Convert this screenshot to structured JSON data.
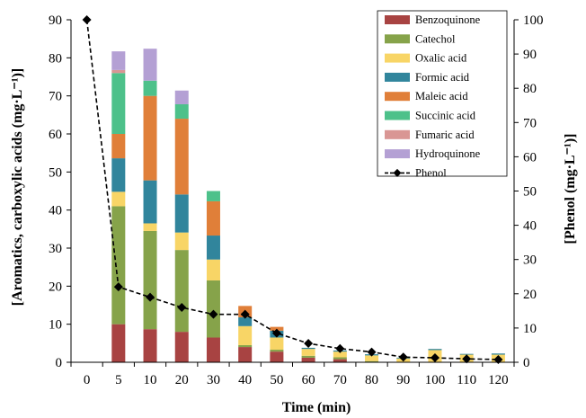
{
  "chart_data": {
    "type": "bar",
    "subtype": "stacked-bar-with-line",
    "categories": [
      "0",
      "5",
      "10",
      "20",
      "30",
      "40",
      "50",
      "60",
      "70",
      "80",
      "90",
      "100",
      "110",
      "120"
    ],
    "xlabel": "Time (min)",
    "ylabel_left": "[Aromatics, carboxylic acids  (mg·L⁻¹)]",
    "ylabel_right": "[Phenol (mg·L⁻¹)]",
    "ylim_left": [
      0,
      90
    ],
    "ylim_right": [
      0,
      100
    ],
    "yticks_left": [
      "0",
      "10",
      "20",
      "30",
      "40",
      "50",
      "60",
      "70",
      "80",
      "90"
    ],
    "yticks_right": [
      "0",
      "10",
      "20",
      "30",
      "40",
      "50",
      "60",
      "70",
      "80",
      "90",
      "100"
    ],
    "grid": false,
    "legend_position": "top-right",
    "series": [
      {
        "name": "Benzoquinone",
        "color": "#a84342",
        "values": [
          0,
          10,
          8.7,
          8,
          6.5,
          4,
          2.8,
          1.2,
          0.8,
          0,
          0,
          0,
          0,
          0
        ]
      },
      {
        "name": "Catechol",
        "color": "#86a34a",
        "values": [
          0,
          31,
          25.8,
          21.5,
          15,
          0.5,
          0.5,
          0.5,
          0.5,
          0.3,
          0,
          0,
          0,
          0
        ]
      },
      {
        "name": "Oxalic acid",
        "color": "#f8d566",
        "values": [
          0,
          3.8,
          2,
          4.6,
          5.5,
          5,
          3.2,
          1.8,
          1.5,
          1.5,
          1,
          3.2,
          2,
          2
        ]
      },
      {
        "name": "Formic acid",
        "color": "#31859c",
        "values": [
          0,
          8.8,
          11.3,
          10,
          6.3,
          2.3,
          1.8,
          0.3,
          0.3,
          0.3,
          0.2,
          0.3,
          0.2,
          0.3
        ]
      },
      {
        "name": "Maleic acid",
        "color": "#e07f39",
        "values": [
          0,
          6.4,
          22.2,
          19.9,
          9,
          3,
          1,
          0,
          0,
          0,
          0,
          0,
          0,
          0
        ]
      },
      {
        "name": "Succinic acid",
        "color": "#4dc18a",
        "values": [
          0,
          16,
          4,
          3.8,
          2.7,
          0,
          0,
          0,
          0,
          0,
          0,
          0,
          0,
          0
        ]
      },
      {
        "name": "Fumaric acid",
        "color": "#d99694",
        "values": [
          0,
          0.8,
          0,
          0,
          0,
          0,
          0,
          0,
          0,
          0,
          0,
          0,
          0,
          0
        ]
      },
      {
        "name": "Hydroquinone",
        "color": "#b4a0d4",
        "values": [
          0,
          4.9,
          8.4,
          3.6,
          0,
          0,
          0,
          0,
          0,
          0,
          0,
          0,
          0,
          0
        ]
      }
    ],
    "line_series": {
      "name": "Phenol",
      "axis": "right",
      "color": "#000000",
      "values": [
        100,
        22,
        19,
        16,
        14,
        14,
        8.5,
        5.5,
        4,
        3,
        1.5,
        1.3,
        1,
        0.8
      ]
    }
  }
}
